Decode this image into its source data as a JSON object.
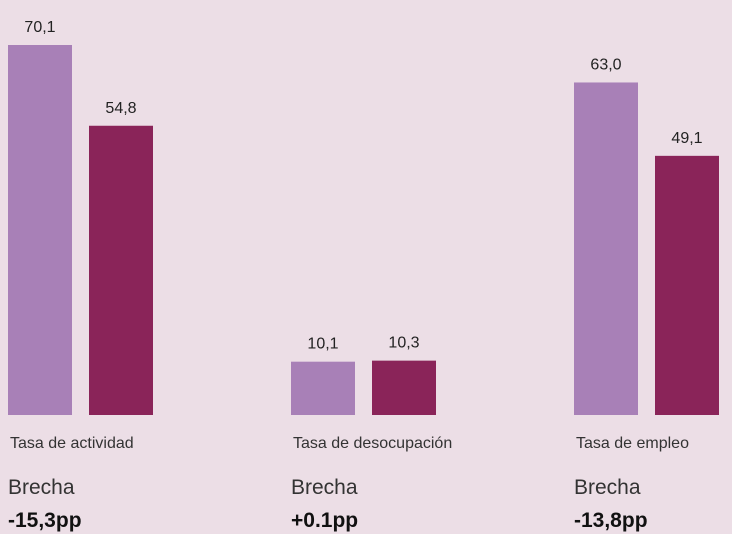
{
  "chart_data": {
    "type": "bar",
    "categories": [
      "Tasa de actividad",
      "Tasa de desocupación",
      "Tasa de empleo"
    ],
    "series": [
      {
        "color": "#a880b7",
        "values": [
          70.1,
          10.1,
          63.0
        ],
        "value_labels": [
          "70,1",
          "10,1",
          "63,0"
        ]
      },
      {
        "color": "#8a2459",
        "values": [
          54.8,
          10.3,
          49.1
        ],
        "value_labels": [
          "54,8",
          "10,3",
          "49,1"
        ]
      }
    ],
    "annotations": [
      {
        "label": "Brecha",
        "value": "-15,3pp"
      },
      {
        "label": "Brecha",
        "value": "+0.1pp"
      },
      {
        "label": "Brecha",
        "value": "-13,8pp"
      }
    ]
  }
}
